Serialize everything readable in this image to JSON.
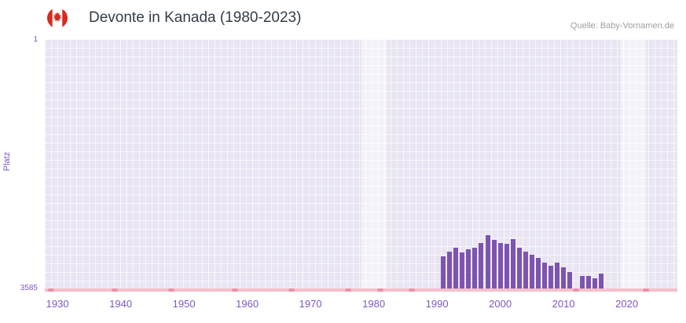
{
  "header": {
    "title": "Devonte in Kanada (1980-2023)",
    "source": "Quelle: Baby-Vornamen.de",
    "flag_icon": "canada-flag-icon"
  },
  "chart_data": {
    "type": "bar",
    "title": "Devonte in Kanada (1980-2023)",
    "xlabel": "",
    "ylabel": "Platz",
    "y_axis": {
      "top_label": "1",
      "bottom_label": "3585",
      "min": 1,
      "max": 3585,
      "inverted": true
    },
    "x_domain": [
      1928,
      2028
    ],
    "x_ticks": [
      1930,
      1940,
      1950,
      1960,
      1970,
      1980,
      1990,
      2000,
      2010,
      2020
    ],
    "grid": true,
    "legend": "none",
    "series": [
      {
        "name": "Platz",
        "points": [
          {
            "year": 1991,
            "rank": 3120
          },
          {
            "year": 1992,
            "rank": 3050
          },
          {
            "year": 1993,
            "rank": 3000
          },
          {
            "year": 1994,
            "rank": 3070
          },
          {
            "year": 1995,
            "rank": 3020
          },
          {
            "year": 1996,
            "rank": 3000
          },
          {
            "year": 1997,
            "rank": 2930
          },
          {
            "year": 1998,
            "rank": 2820
          },
          {
            "year": 1999,
            "rank": 2890
          },
          {
            "year": 2000,
            "rank": 2930
          },
          {
            "year": 2001,
            "rank": 2940
          },
          {
            "year": 2002,
            "rank": 2870
          },
          {
            "year": 2003,
            "rank": 3000
          },
          {
            "year": 2004,
            "rank": 3060
          },
          {
            "year": 2005,
            "rank": 3100
          },
          {
            "year": 2006,
            "rank": 3150
          },
          {
            "year": 2007,
            "rank": 3210
          },
          {
            "year": 2008,
            "rank": 3260
          },
          {
            "year": 2009,
            "rank": 3210
          },
          {
            "year": 2010,
            "rank": 3280
          },
          {
            "year": 2011,
            "rank": 3350
          },
          {
            "year": 2013,
            "rank": 3400
          },
          {
            "year": 2014,
            "rank": 3400
          },
          {
            "year": 2015,
            "rank": 3440
          },
          {
            "year": 2016,
            "rank": 3370
          }
        ]
      }
    ],
    "no_rank_marker_years": [
      1929,
      1939,
      1948,
      1958,
      1967,
      1976,
      1981,
      1986,
      2012,
      2023
    ],
    "highlight_bands": [
      [
        1978,
        1982
      ],
      [
        2019,
        2023
      ]
    ],
    "colors": {
      "bar": "#7d54b0",
      "plot_bg": "#e9e5f2",
      "grid": "#ffffff",
      "baseline": "#f6bfca",
      "marker": "#ef8fa0",
      "axis_text": "#7e57c2",
      "title_text": "#333d47",
      "source_text": "#9e9e9e",
      "flag_red": "#d52b1e",
      "flag_white": "#ffffff"
    }
  }
}
